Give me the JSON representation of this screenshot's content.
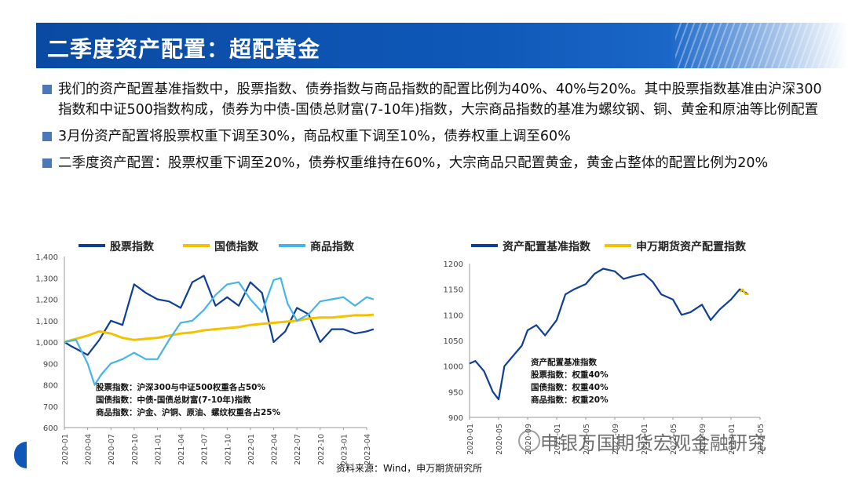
{
  "header": {
    "title": "二季度资产配置：超配黄金"
  },
  "bullets": [
    "我们的资产配置基准指数中，股票指数、债券指数与商品指数的配置比例为40%、40%与20%。其中股票指数基准由沪深300指数和中证500指数构成，债券为中债-国债总财富(7-10年)指数，大宗商品指数的基准为螺纹钢、铜、黄金和原油等比例配置",
    "3月份资产配置将股票权重下调至30%，商品权重下调至10%，债券权重上调至60%",
    "二季度资产配置：股票权重下调至20%，债券权重维持在60%，大宗商品只配置黄金，黄金占整体的配置比例为20%"
  ],
  "footer": {
    "source": "资料来源：Wind，申万期货研究所",
    "watermark": "申银万国期货宏观金融研究"
  },
  "colors": {
    "title_bar": "#0f58b8",
    "stock": "#0f3f95",
    "bond": "#f2c200",
    "commodity": "#45b4e6",
    "benchmark": "#0f3f95",
    "swhy": "#f2c200"
  },
  "chart_data": [
    {
      "type": "line",
      "title": "",
      "legend_position": "top",
      "x_tick_labels": [
        "2020-01",
        "2020-04",
        "2020-07",
        "2020-10",
        "2021-01",
        "2021-04",
        "2021-07",
        "2021-10",
        "2022-01",
        "2022-04",
        "2022-07",
        "2022-10",
        "2023-01",
        "2023-04"
      ],
      "ylim": [
        600,
        1400
      ],
      "y_ticks": [
        "600",
        "700",
        "800",
        "900",
        "1,000",
        "1,100",
        "1,200",
        "1,300",
        "1,400"
      ],
      "grid": false,
      "annotations": [
        "股票指数：沪深300与中证500权重各占50%",
        "国债指数：中债-国债总财富(7-10年)指数",
        "商品指数：沪金、沪铜、原油、螺纹权重各占25%"
      ],
      "series": [
        {
          "name": "股票指数",
          "color": "#0f3f95",
          "x": [
            0,
            0.3,
            1,
            1.5,
            2,
            2.5,
            3,
            3.5,
            4,
            4.5,
            5,
            5.5,
            6,
            6.5,
            7,
            7.5,
            8,
            8.5,
            9,
            9.5,
            10,
            10.5,
            11,
            11.5,
            12,
            12.5,
            13,
            13.3
          ],
          "y": [
            1000,
            980,
            940,
            1010,
            1100,
            1080,
            1270,
            1230,
            1200,
            1190,
            1160,
            1280,
            1310,
            1170,
            1210,
            1170,
            1280,
            1230,
            1000,
            1050,
            1160,
            1130,
            1000,
            1060,
            1060,
            1040,
            1050,
            1060
          ]
        },
        {
          "name": "国债指数",
          "color": "#f2c200",
          "x": [
            0,
            1,
            1.5,
            2,
            2.5,
            3,
            3.5,
            4,
            4.5,
            5,
            5.5,
            6,
            6.5,
            7,
            7.5,
            8,
            8.5,
            9,
            9.5,
            10,
            10.5,
            11,
            11.5,
            12,
            12.5,
            13,
            13.3
          ],
          "y": [
            1000,
            1030,
            1050,
            1040,
            1020,
            1010,
            1015,
            1020,
            1030,
            1040,
            1045,
            1055,
            1060,
            1065,
            1070,
            1080,
            1085,
            1090,
            1095,
            1100,
            1110,
            1115,
            1115,
            1120,
            1125,
            1125,
            1128
          ]
        },
        {
          "name": "商品指数",
          "color": "#45b4e6",
          "x": [
            0,
            0.5,
            1,
            1.3,
            1.6,
            2,
            2.5,
            3,
            3.5,
            4,
            4.5,
            5,
            5.5,
            6,
            6.5,
            7,
            7.5,
            8,
            8.5,
            9,
            9.3,
            9.6,
            10,
            10.5,
            11,
            11.5,
            12,
            12.5,
            13,
            13.3
          ],
          "y": [
            1000,
            1010,
            900,
            800,
            850,
            900,
            920,
            950,
            920,
            920,
            1010,
            1090,
            1100,
            1150,
            1220,
            1270,
            1280,
            1200,
            1140,
            1290,
            1300,
            1180,
            1100,
            1130,
            1190,
            1200,
            1210,
            1170,
            1210,
            1200
          ]
        }
      ]
    },
    {
      "type": "line",
      "title": "",
      "legend_position": "top",
      "x_tick_labels": [
        "2020-01",
        "2020-05",
        "2020-09",
        "2021-01",
        "2021-05",
        "2021-09",
        "2022-01",
        "2022-05",
        "2022-09",
        "2023-01",
        "2023-05"
      ],
      "ylim": [
        900,
        1200
      ],
      "y_ticks": [
        "900",
        "950",
        "1000",
        "1050",
        "1100",
        "1150",
        "1200"
      ],
      "grid": false,
      "annotations": [
        "资产配置基准指数",
        "股票指数：权重40%",
        "国债指数：权重40%",
        "商品指数：权重20%"
      ],
      "series": [
        {
          "name": "资产配置基准指数",
          "color": "#0f3f95",
          "x": [
            0,
            0.2,
            0.5,
            0.8,
            1,
            1.2,
            1.5,
            1.8,
            2,
            2.3,
            2.6,
            3,
            3.3,
            3.6,
            4,
            4.3,
            4.6,
            5,
            5.3,
            5.6,
            6,
            6.3,
            6.6,
            7,
            7.3,
            7.6,
            8,
            8.3,
            8.6,
            9,
            9.3,
            9.6
          ],
          "y": [
            1005,
            1010,
            990,
            950,
            935,
            1000,
            1020,
            1040,
            1070,
            1080,
            1060,
            1090,
            1140,
            1150,
            1160,
            1180,
            1190,
            1185,
            1170,
            1175,
            1180,
            1165,
            1140,
            1130,
            1100,
            1105,
            1120,
            1090,
            1110,
            1130,
            1150,
            1140
          ]
        },
        {
          "name": "申万期货资产配置指数",
          "color": "#f2c200",
          "x": [
            9.3,
            9.4,
            9.5,
            9.6
          ],
          "y": [
            1145,
            1150,
            1140,
            1142
          ]
        }
      ]
    }
  ]
}
